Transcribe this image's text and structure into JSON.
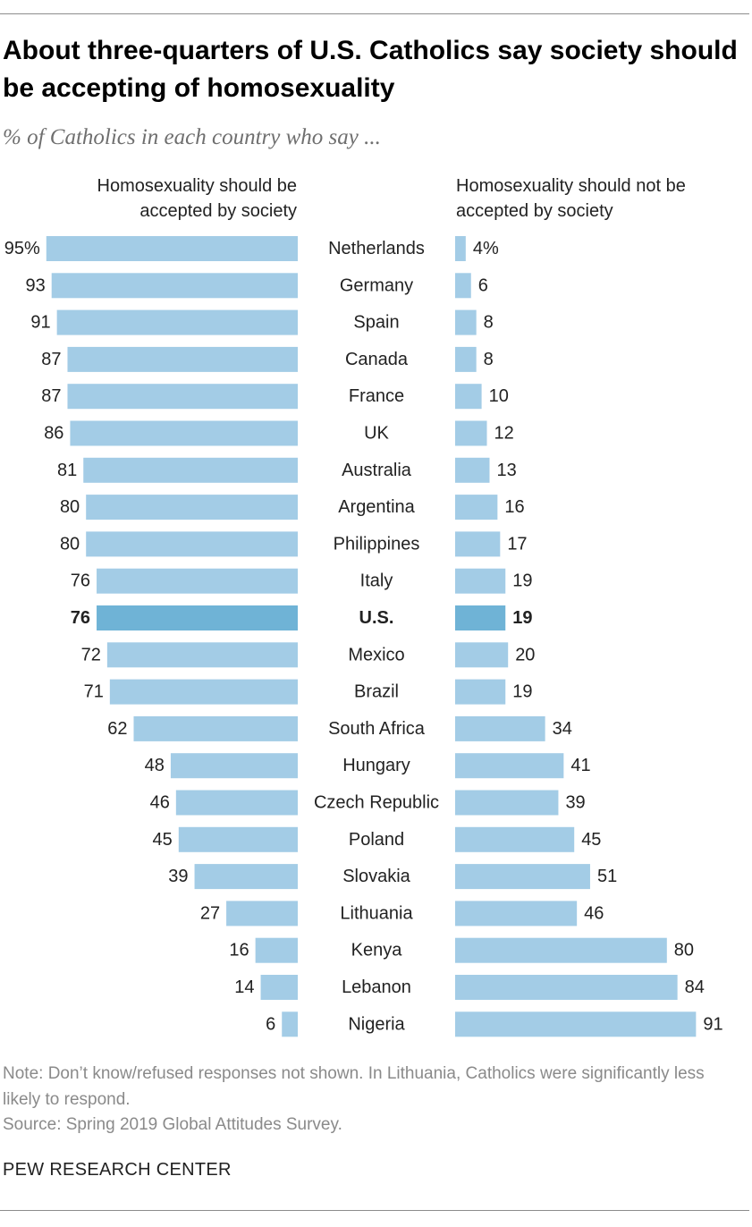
{
  "chart_data": {
    "type": "bar",
    "title": "About three-quarters of U.S. Catholics say society should be accepting of homosexuality",
    "subtitle": "% of Catholics in each country who say ...",
    "highlight": "U.S.",
    "categories": [
      "Netherlands",
      "Germany",
      "Spain",
      "Canada",
      "France",
      "UK",
      "Australia",
      "Argentina",
      "Philippines",
      "Italy",
      "U.S.",
      "Mexico",
      "Brazil",
      "South Africa",
      "Hungary",
      "Czech Republic",
      "Poland",
      "Slovakia",
      "Lithuania",
      "Kenya",
      "Lebanon",
      "Nigeria"
    ],
    "series": [
      {
        "name": "Homosexuality should be accepted by society",
        "name_lines": [
          "Homosexuality should be",
          "accepted by society"
        ],
        "values": [
          95,
          93,
          91,
          87,
          87,
          86,
          81,
          80,
          80,
          76,
          76,
          72,
          71,
          62,
          48,
          46,
          45,
          39,
          27,
          16,
          14,
          6
        ],
        "labels": [
          "95%",
          "93",
          "91",
          "87",
          "87",
          "86",
          "81",
          "80",
          "80",
          "76",
          "76",
          "72",
          "71",
          "62",
          "48",
          "46",
          "45",
          "39",
          "27",
          "16",
          "14",
          "6"
        ]
      },
      {
        "name": "Homosexuality should not be accepted by society",
        "name_lines": [
          "Homosexuality should not be",
          "accepted by society"
        ],
        "values": [
          4,
          6,
          8,
          8,
          10,
          12,
          13,
          16,
          17,
          19,
          19,
          20,
          19,
          34,
          41,
          39,
          45,
          51,
          46,
          80,
          84,
          91
        ],
        "labels": [
          "4%",
          "6",
          "8",
          "8",
          "10",
          "12",
          "13",
          "16",
          "17",
          "19",
          "19",
          "20",
          "19",
          "34",
          "41",
          "39",
          "45",
          "51",
          "46",
          "80",
          "84",
          "91"
        ]
      }
    ],
    "colors": {
      "bar": "#a3cce6",
      "highlight_bar": "#6fb3d6"
    }
  },
  "notes": {
    "note": "Note: Don’t know/refused responses not shown. In Lithuania, Catholics were significantly less likely to respond.",
    "source": "Source: Spring 2019 Global Attitudes Survey."
  },
  "brand": "PEW RESEARCH CENTER"
}
